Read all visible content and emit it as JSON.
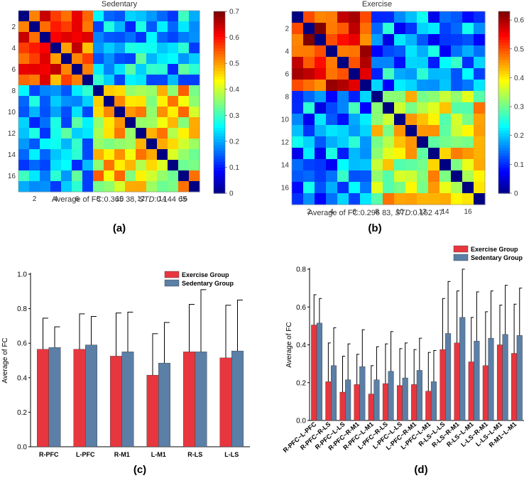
{
  "chart_data": [
    {
      "type": "heatmap",
      "panel_label": "(a)",
      "title": "Sedentary",
      "caption_prefix": "Average of FC:0.365 38, ",
      "caption_std_label": "STD",
      "caption_std_value": ":0.144 65",
      "tick_labels": [
        "2",
        "4",
        "6",
        "8",
        "10",
        "12",
        "14",
        "16"
      ],
      "colorbar_ticks": [
        "0",
        "0.1",
        "0.2",
        "0.3",
        "0.4",
        "0.5",
        "0.6",
        "0.7"
      ],
      "vmin": 0,
      "vmax": 0.7,
      "size": 17,
      "block_means": {
        "within_1_7": 0.58,
        "within_8_17": 0.44,
        "between": 0.22
      }
    },
    {
      "type": "heatmap",
      "panel_label": "(b)",
      "title": "Exercise",
      "caption_prefix": "Average of FC:0.296 83, ",
      "caption_std_label": "STD",
      "caption_std_value": ":0.152 47",
      "tick_labels": [
        "2",
        "4",
        "6",
        "8",
        "10",
        "12",
        "14",
        "16"
      ],
      "colorbar_ticks": [
        "0",
        "0.1",
        "0.2",
        "0.3",
        "0.4",
        "0.5",
        "0.6"
      ],
      "vmin": 0,
      "vmax": 0.63,
      "size": 17,
      "block_means": {
        "within_1_7": 0.56,
        "within_8_17": 0.38,
        "between": 0.17
      }
    },
    {
      "type": "bar",
      "panel_label": "(c)",
      "ylabel": "Average of FC",
      "ylim": [
        0,
        1.0
      ],
      "yticks": [
        "0.0",
        "0.2",
        "0.4",
        "0.6",
        "0.8",
        "1.0"
      ],
      "categories": [
        "R-PFC",
        "L-PFC",
        "R-M1",
        "L-M1",
        "R-LS",
        "L-LS"
      ],
      "series": [
        {
          "name": "Exercise Group",
          "color": "#e8363f",
          "values": [
            0.565,
            0.565,
            0.525,
            0.415,
            0.55,
            0.515
          ],
          "errors": [
            0.18,
            0.205,
            0.25,
            0.24,
            0.275,
            0.305
          ]
        },
        {
          "name": "Sedentary Group",
          "color": "#5b7fa6",
          "values": [
            0.575,
            0.59,
            0.55,
            0.485,
            0.55,
            0.555
          ],
          "errors": [
            0.12,
            0.165,
            0.23,
            0.235,
            0.36,
            0.295
          ]
        }
      ]
    },
    {
      "type": "bar",
      "panel_label": "(d)",
      "ylabel": "Average of FC",
      "ylim": [
        0,
        0.8
      ],
      "yticks": [
        "0.0",
        "0.2",
        "0.4",
        "0.6",
        "0.8"
      ],
      "categories": [
        "R-PFC~L-PFC",
        "R-PFC~R-LS",
        "R-PFC~L-LS",
        "R-PFC~R-M1",
        "R-PFC~L-M1",
        "L-PFC~R-LS",
        "L-PFC~L-LS",
        "L-PFC~R-M1",
        "L-PFC~L-M1",
        "R-LS~L-LS",
        "R-LS~R-M1",
        "R-LS~L-M1",
        "L-LS~R-M1",
        "L-LS~L-M1",
        "R-M1~L-M1"
      ],
      "series": [
        {
          "name": "Exercise Group",
          "color": "#e8363f",
          "values": [
            0.505,
            0.205,
            0.15,
            0.19,
            0.14,
            0.195,
            0.185,
            0.19,
            0.155,
            0.375,
            0.41,
            0.31,
            0.29,
            0.4,
            0.355
          ],
          "errors": [
            0.16,
            0.205,
            0.19,
            0.16,
            0.15,
            0.21,
            0.195,
            0.185,
            0.205,
            0.27,
            0.275,
            0.235,
            0.285,
            0.21,
            0.26
          ]
        },
        {
          "name": "Sedentary Group",
          "color": "#5b7fa6",
          "values": [
            0.515,
            0.29,
            0.215,
            0.285,
            0.215,
            0.26,
            0.225,
            0.265,
            0.205,
            0.46,
            0.545,
            0.42,
            0.435,
            0.455,
            0.45
          ],
          "errors": [
            0.13,
            0.2,
            0.19,
            0.195,
            0.175,
            0.21,
            0.185,
            0.17,
            0.165,
            0.275,
            0.255,
            0.26,
            0.25,
            0.26,
            0.25
          ]
        }
      ]
    }
  ]
}
